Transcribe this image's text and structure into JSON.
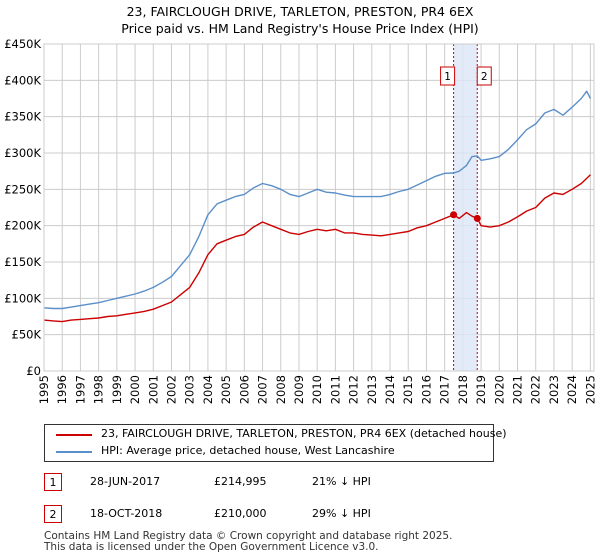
{
  "title_line1": "23, FAIRCLOUGH DRIVE, TARLETON, PRESTON, PR4 6EX",
  "title_line2": "Price paid vs. HM Land Registry's House Price Index (HPI)",
  "colors": {
    "property": "#cc0000",
    "hpi": "#5b8fc9",
    "band": "#dce6f7",
    "marker": "#cc0000",
    "grid": "#cccccc"
  },
  "chart_data": {
    "type": "line",
    "title": "23, FAIRCLOUGH DRIVE, TARLETON, PRESTON, PR4 6EX — Price paid vs. HM Land Registry's House Price Index (HPI)",
    "xlabel": "",
    "ylabel": "",
    "xlim": [
      1995.0,
      2025.2
    ],
    "ylim": [
      0,
      450000
    ],
    "grid": true,
    "y_ticks": [
      {
        "value": 0,
        "label": "£0"
      },
      {
        "value": 50000,
        "label": "£50K"
      },
      {
        "value": 100000,
        "label": "£100K"
      },
      {
        "value": 150000,
        "label": "£150K"
      },
      {
        "value": 200000,
        "label": "£200K"
      },
      {
        "value": 250000,
        "label": "£250K"
      },
      {
        "value": 300000,
        "label": "£300K"
      },
      {
        "value": 350000,
        "label": "£350K"
      },
      {
        "value": 400000,
        "label": "£400K"
      },
      {
        "value": 450000,
        "label": "£450K"
      }
    ],
    "x_ticks": [
      "1995",
      "1996",
      "1997",
      "1998",
      "1999",
      "2000",
      "2001",
      "2002",
      "2003",
      "2004",
      "2005",
      "2006",
      "2007",
      "2008",
      "2009",
      "2010",
      "2011",
      "2012",
      "2013",
      "2014",
      "2015",
      "2016",
      "2017",
      "2018",
      "2019",
      "2020",
      "2021",
      "2022",
      "2023",
      "2024",
      "2025"
    ],
    "series": [
      {
        "name": "23, FAIRCLOUGH DRIVE, TARLETON, PRESTON, PR4 6EX (detached house)",
        "color": "#cc0000",
        "x": [
          1995.0,
          1995.5,
          1996.0,
          1996.5,
          1997.0,
          1997.5,
          1998.0,
          1998.5,
          1999.0,
          1999.5,
          2000.0,
          2000.5,
          2001.0,
          2001.5,
          2002.0,
          2002.5,
          2003.0,
          2003.5,
          2004.0,
          2004.5,
          2005.0,
          2005.5,
          2006.0,
          2006.5,
          2007.0,
          2007.5,
          2008.0,
          2008.5,
          2009.0,
          2009.5,
          2010.0,
          2010.5,
          2011.0,
          2011.5,
          2012.0,
          2012.5,
          2013.0,
          2013.5,
          2014.0,
          2014.5,
          2015.0,
          2015.5,
          2016.0,
          2016.5,
          2017.0,
          2017.49,
          2017.8,
          2018.2,
          2018.5,
          2018.8,
          2019.0,
          2019.5,
          2020.0,
          2020.5,
          2021.0,
          2021.5,
          2022.0,
          2022.5,
          2023.0,
          2023.5,
          2024.0,
          2024.5,
          2024.8,
          2025.0
        ],
        "y": [
          70000,
          69000,
          68000,
          70000,
          71000,
          72000,
          73000,
          75000,
          76000,
          78000,
          80000,
          82000,
          85000,
          90000,
          95000,
          105000,
          115000,
          135000,
          160000,
          175000,
          180000,
          185000,
          188000,
          198000,
          205000,
          200000,
          195000,
          190000,
          188000,
          192000,
          195000,
          193000,
          195000,
          190000,
          190000,
          188000,
          187000,
          186000,
          188000,
          190000,
          192000,
          197000,
          200000,
          205000,
          210000,
          214995,
          210000,
          218000,
          213000,
          210000,
          200000,
          198000,
          200000,
          205000,
          212000,
          220000,
          225000,
          238000,
          245000,
          243000,
          250000,
          258000,
          265000,
          270000
        ]
      },
      {
        "name": "HPI: Average price, detached house, West Lancashire",
        "color": "#5b8fc9",
        "x": [
          1995.0,
          1995.5,
          1996.0,
          1996.5,
          1997.0,
          1997.5,
          1998.0,
          1998.5,
          1999.0,
          1999.5,
          2000.0,
          2000.5,
          2001.0,
          2001.5,
          2002.0,
          2002.5,
          2003.0,
          2003.5,
          2004.0,
          2004.5,
          2005.0,
          2005.5,
          2006.0,
          2006.5,
          2007.0,
          2007.5,
          2008.0,
          2008.5,
          2009.0,
          2009.5,
          2010.0,
          2010.5,
          2011.0,
          2011.5,
          2012.0,
          2012.5,
          2013.0,
          2013.5,
          2014.0,
          2014.5,
          2015.0,
          2015.5,
          2016.0,
          2016.5,
          2017.0,
          2017.49,
          2017.8,
          2018.2,
          2018.5,
          2018.8,
          2019.0,
          2019.5,
          2020.0,
          2020.5,
          2021.0,
          2021.5,
          2022.0,
          2022.5,
          2023.0,
          2023.5,
          2024.0,
          2024.5,
          2024.8,
          2025.0
        ],
        "y": [
          87000,
          86000,
          86000,
          88000,
          90000,
          92000,
          94000,
          97000,
          100000,
          103000,
          106000,
          110000,
          115000,
          122000,
          130000,
          145000,
          160000,
          185000,
          215000,
          230000,
          235000,
          240000,
          243000,
          252000,
          258000,
          255000,
          250000,
          243000,
          240000,
          245000,
          250000,
          246000,
          245000,
          242000,
          240000,
          240000,
          240000,
          240000,
          243000,
          247000,
          250000,
          256000,
          262000,
          268000,
          272000,
          272500,
          275000,
          283000,
          295000,
          296000,
          290000,
          292000,
          295000,
          305000,
          318000,
          332000,
          340000,
          355000,
          360000,
          352000,
          363000,
          375000,
          385000,
          375000
        ]
      }
    ],
    "sales": [
      {
        "id": "1",
        "x": 2017.49,
        "y": 214995,
        "date": "28-JUN-2017",
        "price": "£214,995",
        "hpi": "21% ↓ HPI"
      },
      {
        "id": "2",
        "x": 2018.79,
        "y": 210000,
        "date": "18-OCT-2018",
        "price": "£210,000",
        "hpi": "29% ↓ HPI"
      }
    ],
    "shaded_range": [
      2017.49,
      2018.79
    ]
  },
  "legend": {
    "property_label": "23, FAIRCLOUGH DRIVE, TARLETON, PRESTON, PR4 6EX (detached house)",
    "hpi_label": "HPI: Average price, detached house, West Lancashire"
  },
  "footer": {
    "line1": "Contains HM Land Registry data © Crown copyright and database right 2025.",
    "line2": "This data is licensed under the Open Government Licence v3.0."
  }
}
